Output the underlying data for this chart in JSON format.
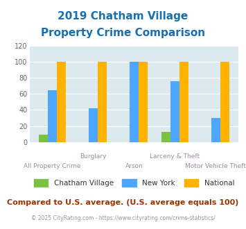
{
  "title_line1": "2019 Chatham Village",
  "title_line2": "Property Crime Comparison",
  "categories": [
    "All Property Crime",
    "Burglary",
    "Arson",
    "Larceny & Theft",
    "Motor Vehicle Theft"
  ],
  "series": {
    "Chatham Village": [
      9,
      0,
      0,
      13,
      0
    ],
    "New York": [
      65,
      42,
      100,
      76,
      30
    ],
    "National": [
      100,
      100,
      100,
      100,
      100
    ]
  },
  "colors": {
    "Chatham Village": "#7dc142",
    "New York": "#4da6ff",
    "National": "#ffb300"
  },
  "ylim": [
    0,
    120
  ],
  "yticks": [
    0,
    20,
    40,
    60,
    80,
    100,
    120
  ],
  "footnote": "Compared to U.S. average. (U.S. average equals 100)",
  "copyright": "© 2025 CityRating.com - https://www.cityrating.com/crime-statistics/",
  "title_color": "#1a6faf",
  "axis_label_color": "#9b8ea0",
  "footnote_color": "#993300",
  "copyright_color": "#999999",
  "background_color": "#dce9ef",
  "fig_background": "#ffffff",
  "bar_width": 0.22,
  "grid_color": "#ffffff"
}
